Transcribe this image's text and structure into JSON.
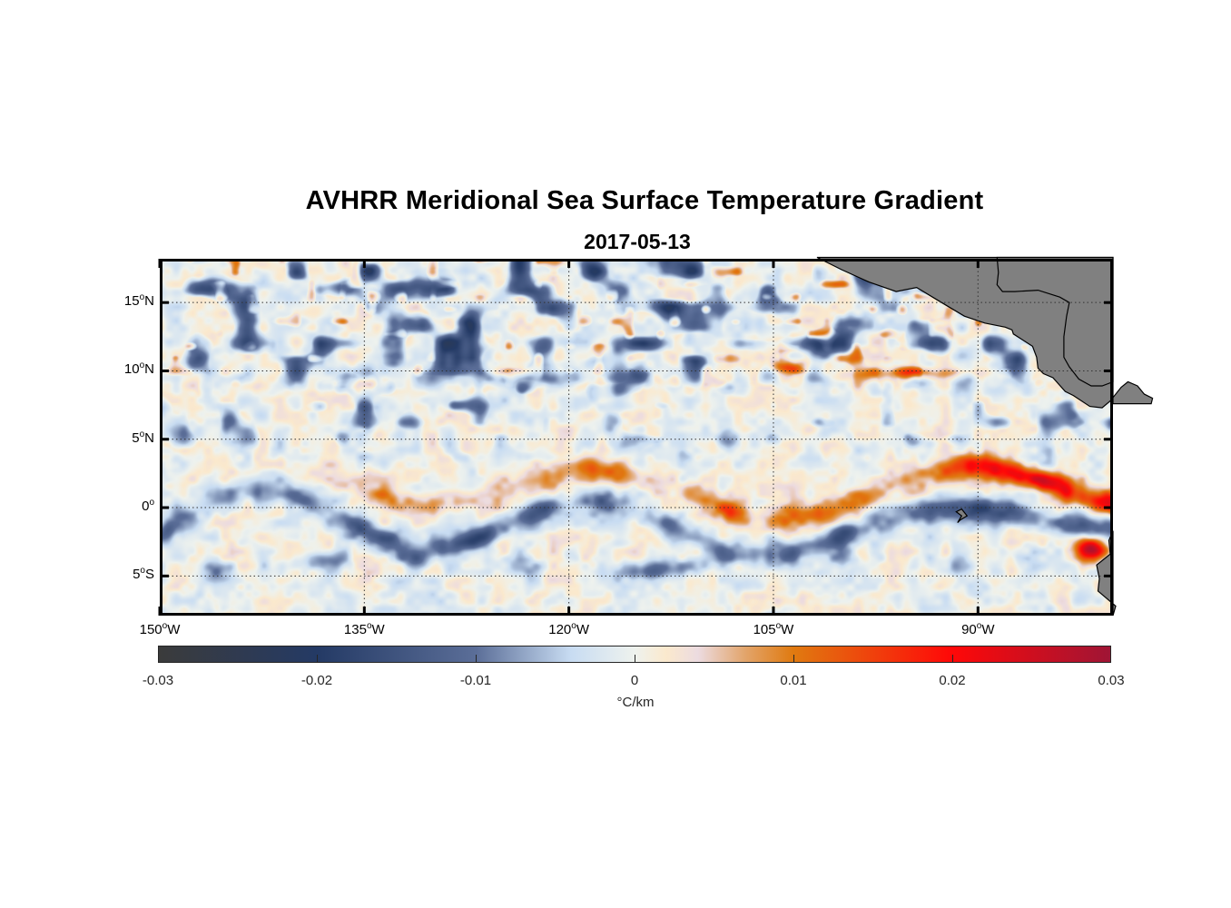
{
  "chart_data": {
    "type": "heatmap",
    "title": "AVHRR Meridional Sea Surface Temperature Gradient",
    "subtitle": "2017-05-13",
    "projection": "lon-lat",
    "xlim": [
      -150,
      -80.1
    ],
    "ylim": [
      -7.9,
      18.2
    ],
    "grid": true,
    "x_ticks": [
      {
        "value": -150,
        "num": "150",
        "hemi": "W"
      },
      {
        "value": -135,
        "num": "135",
        "hemi": "W"
      },
      {
        "value": -120,
        "num": "120",
        "hemi": "W"
      },
      {
        "value": -105,
        "num": "105",
        "hemi": "W"
      },
      {
        "value": -90,
        "num": "90",
        "hemi": "W"
      }
    ],
    "y_ticks": [
      {
        "value": 15,
        "num": "15",
        "hemi": "N"
      },
      {
        "value": 10,
        "num": "10",
        "hemi": "N"
      },
      {
        "value": 5,
        "num": "5",
        "hemi": "N"
      },
      {
        "value": 0,
        "num": "0",
        "hemi": ""
      },
      {
        "value": -5,
        "num": "5",
        "hemi": "S"
      }
    ],
    "degree_symbol": "o",
    "colorbar": {
      "label": "°C/km",
      "clim": [
        -0.03,
        0.03
      ],
      "ticks": [
        -0.03,
        -0.02,
        -0.01,
        0,
        0.01,
        0.02,
        0.03
      ],
      "tick_labels": [
        "-0.03",
        "-0.02",
        "-0.01",
        "0",
        "0.01",
        "0.02",
        "0.03"
      ],
      "colormap": [
        {
          "v": -0.03,
          "c": "#3b3b3b"
        },
        {
          "v": -0.02,
          "c": "#243a65"
        },
        {
          "v": -0.01,
          "c": "#5b6e98"
        },
        {
          "v": -0.004,
          "c": "#c8dcf2"
        },
        {
          "v": 0,
          "c": "#eef2ee"
        },
        {
          "v": 0.002,
          "c": "#fbe9cd"
        },
        {
          "v": 0.004,
          "c": "#ecdbe0"
        },
        {
          "v": 0.007,
          "c": "#e2a46a"
        },
        {
          "v": 0.01,
          "c": "#e07a10"
        },
        {
          "v": 0.02,
          "c": "#ff0808"
        },
        {
          "v": 0.03,
          "c": "#9f1535"
        }
      ]
    },
    "features": [
      {
        "name": "equatorial warm front",
        "sign": "positive",
        "lon_range": [
          -140,
          -82
        ],
        "lat_center": 1.5,
        "peak": 0.028
      },
      {
        "name": "equatorial cold band",
        "sign": "negative",
        "lon_range": [
          -150,
          -84
        ],
        "lat_center": -1.5,
        "peak": -0.017
      },
      {
        "name": "northern eddies",
        "sign": "negative",
        "lon_range": [
          -150,
          -100
        ],
        "lat_range": [
          10,
          18
        ],
        "peak": -0.02
      },
      {
        "name": "gulf of panama warm patch",
        "sign": "positive",
        "lon": -81.5,
        "lat": -3,
        "peak": 0.029
      }
    ],
    "land_color": "#808080"
  }
}
